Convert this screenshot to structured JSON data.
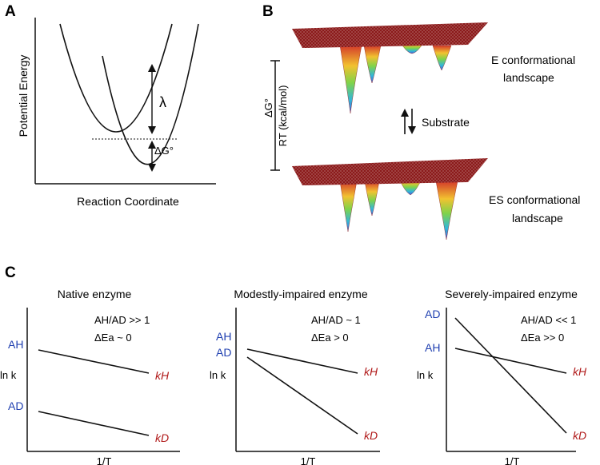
{
  "panelA": {
    "letter": "A",
    "ylabel": "Potential Energy",
    "xlabel": "Reaction Coordinate",
    "lambda": "λ",
    "dG0": "ΔG°"
  },
  "panelB": {
    "letter": "B",
    "scale_top": "ΔG°",
    "scale_bottom": "RT (kcal/mol)",
    "e_landscape": [
      "E conformational",
      "landscape"
    ],
    "es_landscape": [
      "ES conformational",
      "landscape"
    ],
    "substrate": "Substrate",
    "colors": {
      "surface": "#8b1a1a"
    }
  },
  "panelC": {
    "letter": "C",
    "xlabel": "1/T",
    "ylabel": "ln k",
    "subpanels": [
      {
        "title": "Native enzyme",
        "ratio": "AH/AD >> 1",
        "dEa": "ΔEa ~ 0",
        "A_top": "AH",
        "A_bottom": "AD",
        "k_top": "kH",
        "k_bottom": "kD"
      },
      {
        "title": "Modestly-impaired enzyme",
        "ratio": "AH/AD ~ 1",
        "dEa": "ΔEa > 0",
        "A_top": "AH",
        "A_bottom": "AD",
        "k_top": "kH",
        "k_bottom": "kD"
      },
      {
        "title": "Severely-impaired enzyme",
        "ratio": "AH/AD << 1",
        "dEa": "ΔEa >> 0",
        "A_top": "AD",
        "A_bottom": "AH",
        "k_top": "kH",
        "k_bottom": "kD"
      }
    ]
  },
  "colors": {
    "A_label": "#1f3fb0",
    "k_label": "#b01818"
  }
}
